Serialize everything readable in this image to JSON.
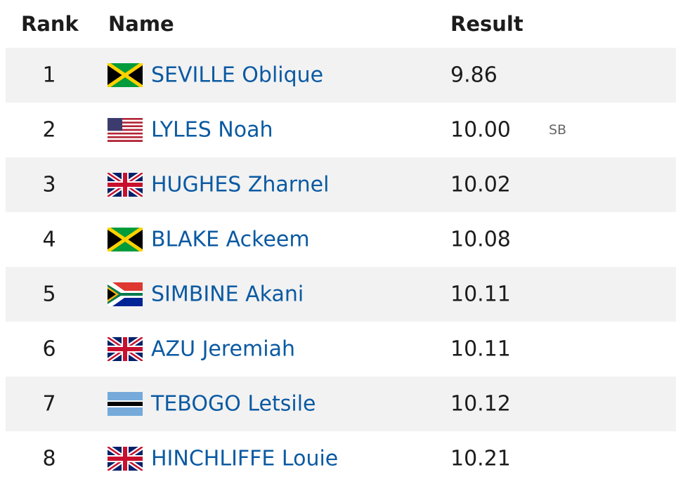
{
  "header": {
    "columns": [
      "Rank",
      "Name",
      "Result"
    ]
  },
  "table": {
    "rows": [
      {
        "rank": "1",
        "name": "SEVILLE Oblique",
        "result": "9.86"
      },
      {
        "rank": "2",
        "name": "LYLES Noah",
        "result": "10.00",
        "note": "SB"
      },
      {
        "rank": "3",
        "name": "HUGHES Zharnel",
        "result": "10.02"
      },
      {
        "rank": "4",
        "name": "BLAKE Ackeem",
        "result": "10.08"
      },
      {
        "rank": "5",
        "name": "SIMBINE Akani",
        "result": "10.11"
      },
      {
        "rank": "6",
        "name": "AZU Jeremiah",
        "result": "10.11"
      },
      {
        "rank": "7",
        "name": "TEBOGO Letsile",
        "result": "10.12"
      },
      {
        "rank": "8",
        "name": "HINCHLIFFE Louie",
        "result": "10.21"
      }
    ]
  }
}
